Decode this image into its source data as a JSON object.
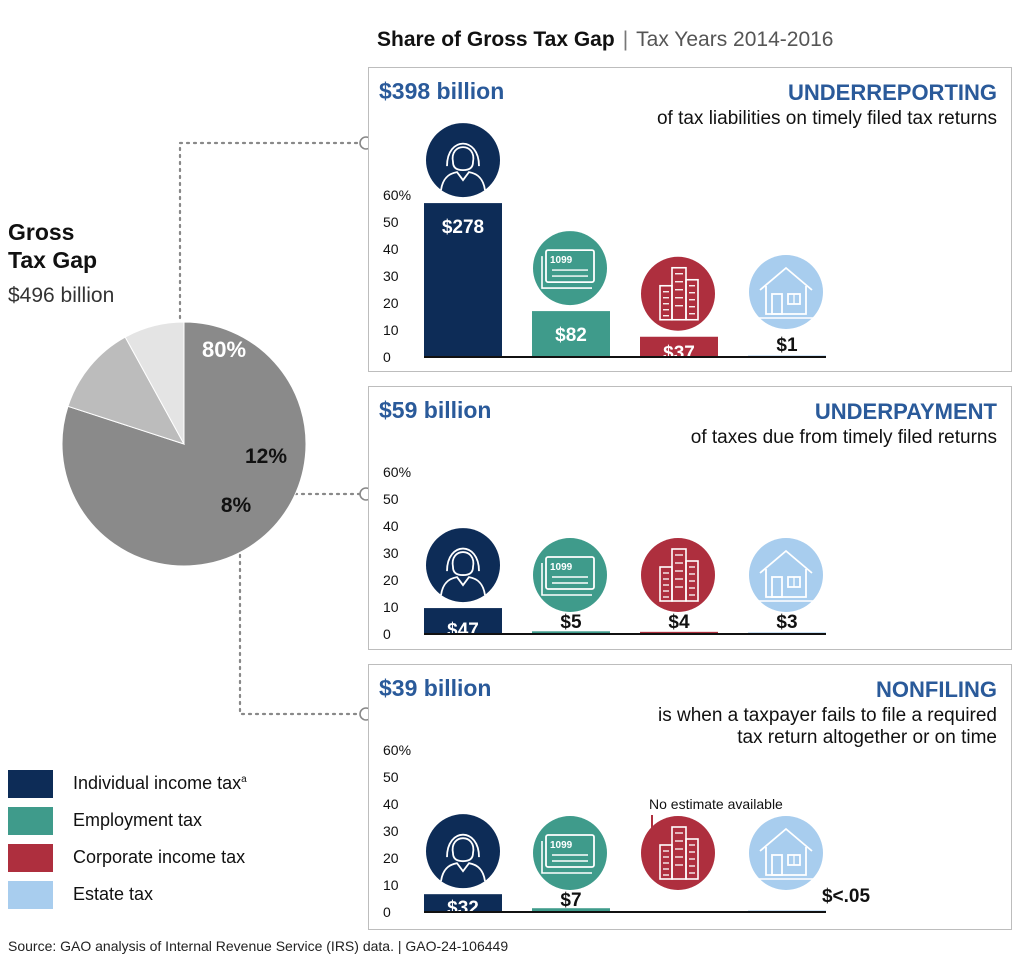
{
  "title": {
    "main": "Share of Gross Tax Gap",
    "separator": "|",
    "years": "Tax Years 2014-2016"
  },
  "gross": {
    "line1": "Gross",
    "line2": "Tax Gap",
    "amount": "$496 billion"
  },
  "legend": [
    {
      "label": "Individual income tax",
      "sup": "a",
      "color": "#0d2c57"
    },
    {
      "label": "Employment tax",
      "sup": "",
      "color": "#3f9b8b"
    },
    {
      "label": "Corporate income tax",
      "sup": "",
      "color": "#ae2f3e"
    },
    {
      "label": "Estate tax",
      "sup": "",
      "color": "#a8cdee"
    }
  ],
  "source": "Source: GAO analysis of Internal Revenue Service (IRS) data.  |  GAO-24-106449",
  "chart_data": [
    {
      "type": "pie",
      "title": "Gross Tax Gap",
      "slices": [
        {
          "name": "UNDERREPORTING",
          "value": 80,
          "label": "80%",
          "color": "#8a8a8a"
        },
        {
          "name": "UNDERPAYMENT",
          "value": 12,
          "label": "12%",
          "color": "#bcbcbc"
        },
        {
          "name": "NONFILING",
          "value": 8,
          "label": "8%",
          "color": "#e4e4e4"
        }
      ]
    },
    {
      "type": "bar",
      "amount": "$398 billion",
      "heading": "UNDERREPORTING",
      "description": [
        "of tax liabilities on timely filed tax returns"
      ],
      "categories": [
        "Individual income tax",
        "Employment tax",
        "Corporate income tax",
        "Estate tax"
      ],
      "values": [
        57,
        17,
        7.5,
        0.2
      ],
      "labels": [
        "$278",
        "$82",
        "$37",
        "$1"
      ],
      "ylim": [
        0,
        60
      ],
      "yticks": [
        "0",
        "10",
        "20",
        "30",
        "40",
        "50",
        "60%"
      ],
      "note": ""
    },
    {
      "type": "bar",
      "amount": "$59 billion",
      "heading": "UNDERPAYMENT",
      "description": [
        "of taxes due from timely filed returns"
      ],
      "categories": [
        "Individual income tax",
        "Employment tax",
        "Corporate income tax",
        "Estate tax"
      ],
      "values": [
        9.6,
        1,
        0.8,
        0.6
      ],
      "labels": [
        "$47",
        "$5",
        "$4",
        "$3"
      ],
      "ylim": [
        0,
        60
      ],
      "yticks": [
        "0",
        "10",
        "20",
        "30",
        "40",
        "50",
        "60%"
      ],
      "note": ""
    },
    {
      "type": "bar",
      "amount": "$39 billion",
      "heading": "NONFILING",
      "description": [
        "is when a taxpayer fails to file a required",
        "tax return altogether or on time"
      ],
      "categories": [
        "Individual income tax",
        "Employment tax",
        "Corporate income tax",
        "Estate tax"
      ],
      "values": [
        6.6,
        1.4,
        null,
        0.01
      ],
      "labels": [
        "$32",
        "$7",
        "",
        "$<.05"
      ],
      "ylim": [
        0,
        60
      ],
      "yticks": [
        "0",
        "10",
        "20",
        "30",
        "40",
        "50",
        "60%"
      ],
      "note": "No estimate available"
    }
  ]
}
